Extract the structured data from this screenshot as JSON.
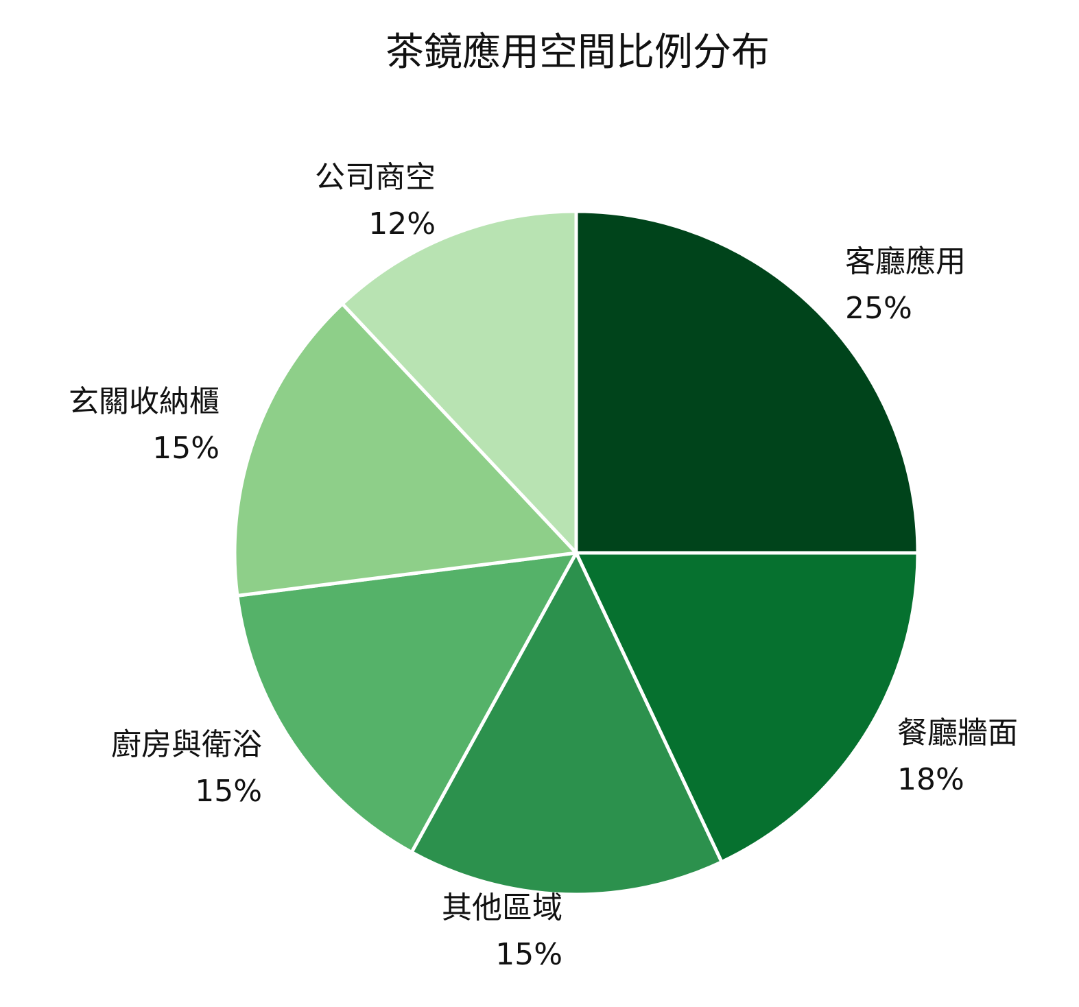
{
  "chart_data": {
    "type": "pie",
    "title": "茶鏡應用空間比例分布",
    "start_angle": "12 o'clock",
    "direction": "clockwise",
    "legend": "none",
    "slices": [
      {
        "label": "客廳應用",
        "value": 25,
        "value_label": "25%",
        "color": "#00441b"
      },
      {
        "label": "餐廳牆面",
        "value": 18,
        "value_label": "18%",
        "color": "#06712f"
      },
      {
        "label": "其他區域",
        "value": 15,
        "value_label": "15%",
        "color": "#2c914d"
      },
      {
        "label": "廚房與衛浴",
        "value": 15,
        "value_label": "15%",
        "color": "#55b269"
      },
      {
        "label": "玄關收納櫃",
        "value": 15,
        "value_label": "15%",
        "color": "#8ecf89"
      },
      {
        "label": "公司商空",
        "value": 12,
        "value_label": "12%",
        "color": "#b8e3b2"
      }
    ]
  }
}
